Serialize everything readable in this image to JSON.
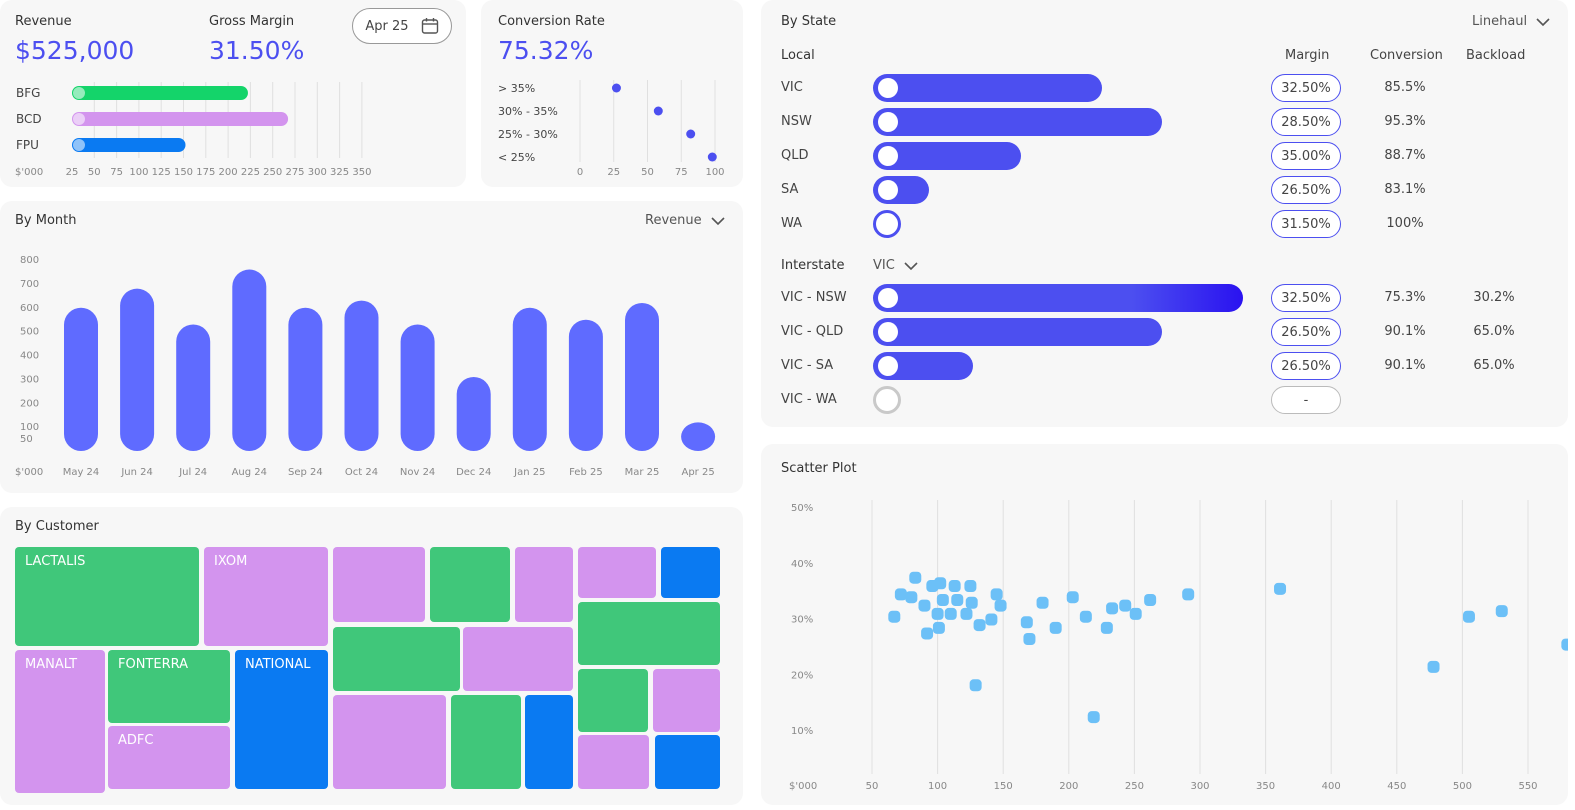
{
  "kpis": {
    "revenue_label": "Revenue",
    "revenue_value": "$525,000",
    "margin_label": "Gross Margin",
    "margin_value": "31.50%",
    "date_button": "Apr 25",
    "conversion_label": "Conversion Rate",
    "conversion_value": "75.32%"
  },
  "colors": {
    "accent": "#4c4ff0",
    "green": "#40c77a",
    "purple": "#d394ee",
    "blue": "#0a7af2",
    "scatter": "#6cc0f7"
  },
  "icons": [
    "calendar-icon",
    "chevron-down-icon"
  ],
  "revenue_bars": {
    "unit": "$'000",
    "ticks": [
      "25",
      "50",
      "75",
      "100",
      "125",
      "150",
      "175",
      "200",
      "225",
      "250",
      "275",
      "300",
      "325",
      "350"
    ],
    "items": [
      {
        "label": "BFG",
        "value": 220,
        "color": "#14d46a"
      },
      {
        "label": "BCD",
        "value": 265,
        "color": "#d394ee"
      },
      {
        "label": "FPU",
        "value": 150,
        "color": "#0a7af2"
      }
    ]
  },
  "conversion": {
    "ticks": [
      "0",
      "25",
      "50",
      "75",
      "100"
    ],
    "rows": [
      {
        "label": "> 35%",
        "value": 27
      },
      {
        "label": "30% - 35%",
        "value": 58
      },
      {
        "label": "25% - 30%",
        "value": 82
      },
      {
        "label": "< 25%",
        "value": 98
      }
    ]
  },
  "month": {
    "title": "By Month",
    "metric": "Revenue",
    "unit": "$'000",
    "ticks": [
      "800",
      "700",
      "600",
      "500",
      "400",
      "300",
      "200",
      "100",
      "50"
    ]
  },
  "chart_data": {
    "type": "bar",
    "categories": [
      "May 24",
      "Jun 24",
      "Jul 24",
      "Aug 24",
      "Sep 24",
      "Oct 24",
      "Nov 24",
      "Dec 24",
      "Jan 25",
      "Feb 25",
      "Mar 25",
      "Apr 25"
    ],
    "values": [
      600,
      680,
      530,
      760,
      600,
      630,
      530,
      310,
      600,
      550,
      620,
      120
    ],
    "title": "By Month",
    "ylabel": "$'000",
    "ylim": [
      0,
      800
    ]
  },
  "customer": {
    "title": "By Customer",
    "labels": [
      "LACTALIS",
      "IXOM",
      "MANALT",
      "FONTERRA",
      "NATIONAL",
      "ADFC"
    ]
  },
  "state": {
    "title": "By State",
    "filter": "Linehaul",
    "local_label": "Local",
    "col_margin": "Margin",
    "col_conversion": "Conversion",
    "col_backload": "Backload",
    "local": [
      {
        "label": "VIC",
        "bar": 62,
        "margin": "32.50%",
        "conversion": "85.5%",
        "backload": ""
      },
      {
        "label": "NSW",
        "bar": 78,
        "margin": "28.50%",
        "conversion": "95.3%",
        "backload": ""
      },
      {
        "label": "QLD",
        "bar": 40,
        "margin": "35.00%",
        "conversion": "88.7%",
        "backload": ""
      },
      {
        "label": "SA",
        "bar": 15,
        "margin": "26.50%",
        "conversion": "83.1%",
        "backload": ""
      },
      {
        "label": "WA",
        "bar": 0,
        "margin": "31.50%",
        "conversion": "100%",
        "backload": ""
      }
    ],
    "interstate_label": "Interstate",
    "interstate_filter": "VIC",
    "interstate": [
      {
        "label": "VIC - NSW",
        "bar": 100,
        "margin": "32.50%",
        "conversion": "75.3%",
        "backload": "30.2%"
      },
      {
        "label": "VIC - QLD",
        "bar": 78,
        "margin": "26.50%",
        "conversion": "90.1%",
        "backload": "65.0%"
      },
      {
        "label": "VIC - SA",
        "bar": 27,
        "margin": "26.50%",
        "conversion": "90.1%",
        "backload": "65.0%"
      },
      {
        "label": "VIC - WA",
        "bar": 0,
        "margin": "-",
        "conversion": "",
        "backload": ""
      }
    ]
  },
  "scatter": {
    "title": "Scatter Plot",
    "unit": "$'000",
    "xticks": [
      "50",
      "100",
      "150",
      "200",
      "250",
      "300",
      "350",
      "400",
      "450",
      "500",
      "550"
    ],
    "yticks": [
      "50%",
      "40%",
      "30%",
      "20%",
      "10%"
    ],
    "points": [
      [
        67,
        30.5
      ],
      [
        72,
        34.5
      ],
      [
        80,
        34
      ],
      [
        83,
        37.5
      ],
      [
        90,
        32.5
      ],
      [
        92,
        27.5
      ],
      [
        96,
        36
      ],
      [
        100,
        31
      ],
      [
        102,
        36.5
      ],
      [
        104,
        33.5
      ],
      [
        101,
        28.5
      ],
      [
        110,
        31
      ],
      [
        113,
        36
      ],
      [
        115,
        33.5
      ],
      [
        122,
        31
      ],
      [
        125,
        36
      ],
      [
        126,
        33
      ],
      [
        129,
        18.2
      ],
      [
        132,
        29
      ],
      [
        141,
        30
      ],
      [
        145,
        34.5
      ],
      [
        148,
        32.5
      ],
      [
        168,
        29.5
      ],
      [
        170,
        26.5
      ],
      [
        180,
        33
      ],
      [
        190,
        28.5
      ],
      [
        203,
        34
      ],
      [
        213,
        30.5
      ],
      [
        219,
        12.5
      ],
      [
        229,
        28.5
      ],
      [
        233,
        32
      ],
      [
        243,
        32.5
      ],
      [
        251,
        31
      ],
      [
        262,
        33.5
      ],
      [
        291,
        34.5
      ],
      [
        361,
        35.5
      ],
      [
        478,
        21.5
      ],
      [
        505,
        30.5
      ],
      [
        530,
        31.5
      ],
      [
        580,
        25.5
      ]
    ]
  }
}
